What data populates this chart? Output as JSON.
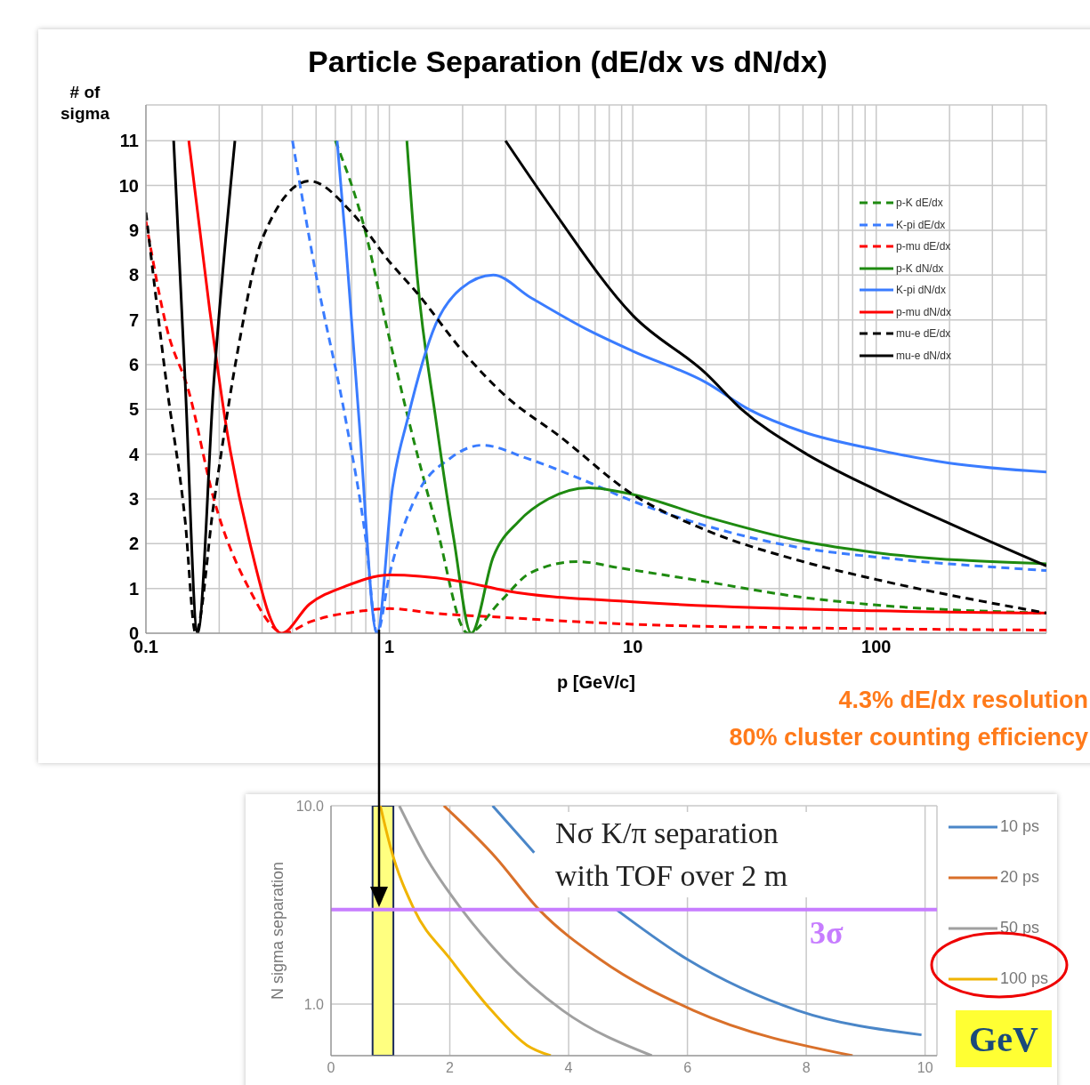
{
  "chart_data": [
    {
      "type": "line",
      "title": "Particle Separation (dE/dx vs dN/dx)",
      "xlabel": "p [GeV/c]",
      "ylabel": "# of sigma",
      "log": "x",
      "grid": true,
      "legend": "top right",
      "xlim": [
        0.1,
        500
      ],
      "ylim": [
        0,
        11.8
      ],
      "xticks": [
        {
          "value": 0.1,
          "label": "0.1"
        },
        {
          "value": 0.2,
          "label": null
        },
        {
          "value": 0.3,
          "label": null
        },
        {
          "value": 0.4,
          "label": null
        },
        {
          "value": 0.5,
          "label": null
        },
        {
          "value": 0.6,
          "label": null
        },
        {
          "value": 0.7,
          "label": null
        },
        {
          "value": 0.8,
          "label": null
        },
        {
          "value": 0.9,
          "label": null
        },
        1,
        {
          "value": 2,
          "label": null
        },
        {
          "value": 3,
          "label": null
        },
        {
          "value": 4,
          "label": null
        },
        {
          "value": 5,
          "label": null
        },
        {
          "value": 6,
          "label": null
        },
        {
          "value": 7,
          "label": null
        },
        {
          "value": 8,
          "label": null
        },
        {
          "value": 9,
          "label": null
        },
        10,
        {
          "value": 20,
          "label": null
        },
        {
          "value": 30,
          "label": null
        },
        {
          "value": 40,
          "label": null
        },
        {
          "value": 50,
          "label": null
        },
        {
          "value": 60,
          "label": null
        },
        {
          "value": 70,
          "label": null
        },
        {
          "value": 80,
          "label": null
        },
        {
          "value": 90,
          "label": null
        },
        100,
        {
          "value": 200,
          "label": null
        },
        {
          "value": 300,
          "label": null
        },
        {
          "value": 400,
          "label": null
        },
        {
          "value": 500,
          "label": null
        }
      ],
      "yticks": [
        0,
        1,
        2,
        3,
        4,
        5,
        6,
        7,
        8,
        9,
        10,
        11
      ],
      "annotations": [
        "4.3% dE/dx resolution",
        "80% cluster counting efficiency"
      ],
      "series": [
        {
          "name": "p-K dE/dx",
          "color": "#1e8a10",
          "line_style": "dashed",
          "x": [
            0.6,
            0.79,
            0.97,
            1.19,
            1.55,
            2.1,
            2.85,
            3.8,
            5.9,
            9,
            20,
            50,
            100,
            500
          ],
          "values": [
            11,
            9.05,
            6.9,
            4.84,
            2.46,
            0,
            0.7,
            1.35,
            1.6,
            1.45,
            1.15,
            0.8,
            0.63,
            0.45
          ]
        },
        {
          "name": "K-pi dE/dx",
          "color": "#3a7cff",
          "line_style": "dashed",
          "x": [
            0.4,
            0.5,
            0.66,
            0.8,
            0.89,
            1,
            1.3,
            1.77,
            2.4,
            3.7,
            6.4,
            10,
            20,
            50,
            100,
            500
          ],
          "values": [
            11,
            8.0,
            4.8,
            2.1,
            0,
            1.3,
            3.1,
            3.9,
            4.2,
            3.9,
            3.4,
            2.95,
            2.4,
            1.9,
            1.7,
            1.4
          ]
        },
        {
          "name": "p-mu dE/dx",
          "color": "#ff0000",
          "line_style": "dashed",
          "x": [
            0.1,
            0.122,
            0.15,
            0.19,
            0.265,
            0.37,
            0.47,
            0.78,
            1,
            1.5,
            3,
            10,
            100,
            500
          ],
          "values": [
            9.2,
            6.8,
            5.4,
            3.0,
            1.0,
            0,
            0.25,
            0.5,
            0.55,
            0.45,
            0.35,
            0.2,
            0.1,
            0.07
          ]
        },
        {
          "name": "p-K dN/dx",
          "color": "#1e8a10",
          "line_style": "solid",
          "x": [
            1.18,
            1.3,
            1.55,
            1.84,
            2.17,
            2.67,
            3.4,
            4.5,
            6.6,
            10,
            20,
            50,
            100,
            500
          ],
          "values": [
            11,
            8.0,
            4.8,
            2.1,
            0,
            1.7,
            2.5,
            3.0,
            3.25,
            3.1,
            2.6,
            2.05,
            1.8,
            1.55
          ]
        },
        {
          "name": "K-pi dN/dx",
          "color": "#3a7cff",
          "line_style": "solid",
          "x": [
            0.61,
            0.66,
            0.75,
            0.89,
            1.03,
            1.19,
            1.55,
            1.97,
            2.67,
            3.8,
            6.4,
            10,
            20,
            30,
            50,
            100,
            200,
            500
          ],
          "values": [
            11,
            8.8,
            4.8,
            0,
            3.25,
            4.8,
            6.9,
            7.7,
            8.0,
            7.5,
            6.8,
            6.3,
            5.6,
            5.0,
            4.5,
            4.1,
            3.8,
            3.6
          ]
        },
        {
          "name": "p-mu dN/dx",
          "color": "#ff0000",
          "line_style": "solid",
          "x": [
            0.15,
            0.183,
            0.217,
            0.265,
            0.36,
            0.47,
            0.66,
            1,
            2,
            3,
            10,
            100,
            500
          ],
          "values": [
            11,
            7.2,
            4.4,
            2.1,
            0,
            0.65,
            1.05,
            1.3,
            1.15,
            0.95,
            0.7,
            0.5,
            0.45
          ]
        },
        {
          "name": "mu-e dE/dx",
          "color": "#000000",
          "line_style": "dashed",
          "x": [
            0.1,
            0.122,
            0.145,
            0.16,
            0.19,
            0.24,
            0.3,
            0.47,
            0.7,
            1,
            1.3,
            2,
            3,
            5,
            10,
            20,
            50,
            100,
            500
          ],
          "values": [
            9.4,
            5.5,
            2.5,
            0,
            2.9,
            6.4,
            8.8,
            10.1,
            9.4,
            8.3,
            7.6,
            6.3,
            5.3,
            4.4,
            3.1,
            2.3,
            1.6,
            1.2,
            0.45
          ]
        },
        {
          "name": "mu-e dN/dx",
          "color": "#000000",
          "line_style": "solid",
          "x": [
            0.13,
            0.145,
            0.163,
            0.19,
            0.232,
            1,
            3.0,
            4.5,
            10,
            20,
            28,
            50,
            100,
            200,
            500
          ],
          "values": [
            11,
            5.6,
            0,
            5.6,
            11,
            null,
            11,
            9.6,
            7.1,
            5.8,
            5.0,
            4.05,
            3.2,
            2.45,
            1.5
          ]
        }
      ]
    },
    {
      "type": "line",
      "ylabel": "N sigma separation",
      "log": "y",
      "grid": true,
      "legend": "right",
      "xlim": [
        0,
        10.2
      ],
      "ylim": [
        0.55,
        10
      ],
      "xticks": [
        0,
        2,
        4,
        6,
        8,
        10
      ],
      "yticks": [
        {
          "value": 1,
          "label": "1.0"
        },
        {
          "value": 10,
          "label": "10.0"
        }
      ],
      "annotations": [
        "Nσ K/π separation with TOF over 2 m",
        "GeV"
      ],
      "ref_lines": [
        {
          "axis": "y",
          "value": 3,
          "label": "3σ",
          "color": "#c77dff"
        }
      ],
      "bands": [
        {
          "axis": "x",
          "from": 0.7,
          "to": 1.05,
          "color": "#ffff80"
        }
      ],
      "series": [
        {
          "name": "10 ps",
          "color": "#4a86c8",
          "x": [
            2.72,
            3.42,
            3.8,
            4.8,
            6.0,
            7.85,
            9.94
          ],
          "values": [
            10,
            5.8,
            null,
            3.0,
            1.68,
            0.93,
            0.7
          ]
        },
        {
          "name": "20 ps",
          "color": "#d9702a",
          "x": [
            1.9,
            2.77,
            3.5,
            4.53,
            6.1,
            8.78
          ],
          "values": [
            10,
            5.5,
            3.0,
            1.68,
            0.93,
            0.55
          ]
        },
        {
          "name": "50 ps",
          "color": "#a0a0a0",
          "x": [
            1.15,
            1.6,
            2.2,
            2.9,
            3.9,
            5.4
          ],
          "values": [
            10,
            5.5,
            3.0,
            1.7,
            0.93,
            0.55
          ]
        },
        {
          "name": "100 ps",
          "color": "#f0b400",
          "x": [
            0.83,
            1,
            1.4,
            2,
            2.7,
            3.3,
            3.7
          ],
          "values": [
            10,
            6.2,
            3.0,
            1.7,
            0.93,
            0.62,
            0.55
          ]
        }
      ]
    }
  ]
}
